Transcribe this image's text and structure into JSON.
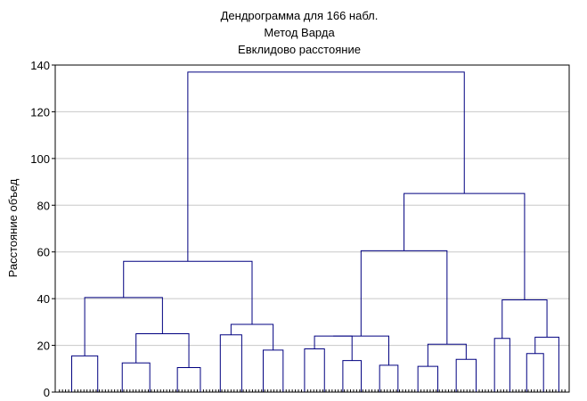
{
  "chart_data": {
    "type": "dendrogram",
    "title": [
      "Дендрограмма для 166 набл.",
      "Метод Варда",
      "Евклидово расстояние"
    ],
    "xlabel": "",
    "ylabel": "Расстояние объед",
    "ylim": [
      0,
      140
    ],
    "yticks": [
      0,
      20,
      40,
      60,
      80,
      100,
      120,
      140
    ],
    "grid": true,
    "colors": {
      "line": "#000080",
      "grid": "#c8c8c8",
      "axis": "#000000"
    },
    "observations": 166,
    "leaf_groups": [
      {
        "start": 0,
        "end": 9
      },
      {
        "start": 9,
        "end": 17
      },
      {
        "start": 17,
        "end": 25
      },
      {
        "start": 25,
        "end": 35
      },
      {
        "start": 35,
        "end": 43
      },
      {
        "start": 43,
        "end": 50
      },
      {
        "start": 50,
        "end": 56
      },
      {
        "start": 56,
        "end": 64
      },
      {
        "start": 64,
        "end": 70
      },
      {
        "start": 70,
        "end": 77
      },
      {
        "start": 77,
        "end": 84
      },
      {
        "start": 84,
        "end": 90
      },
      {
        "start": 90,
        "end": 96
      },
      {
        "start": 96,
        "end": 102
      },
      {
        "start": 102,
        "end": 108
      },
      {
        "start": 108,
        "end": 114
      },
      {
        "start": 114,
        "end": 121
      },
      {
        "start": 121,
        "end": 127
      },
      {
        "start": 127,
        "end": 133
      },
      {
        "start": 133,
        "end": 140
      },
      {
        "start": 140,
        "end": 145
      },
      {
        "start": 145,
        "end": 150
      },
      {
        "start": 150,
        "end": 156
      },
      {
        "start": 156,
        "end": 161
      },
      {
        "start": 161,
        "end": 166
      }
    ],
    "merges": [
      {
        "id": "c1",
        "left": "g0",
        "right": "g1",
        "height": 15.5
      },
      {
        "id": "c2",
        "left": "g2",
        "right": "g3",
        "height": 12.5
      },
      {
        "id": "c3",
        "left": "g4",
        "right": "g5",
        "height": 10.5
      },
      {
        "id": "c4",
        "left": "c2",
        "right": "c3",
        "height": 25
      },
      {
        "id": "c5",
        "left": "c1",
        "right": "c4",
        "height": 40.5
      },
      {
        "id": "c6",
        "left": "g6",
        "right": "g7",
        "height": 24.5
      },
      {
        "id": "c7",
        "left": "g8",
        "right": "g9",
        "height": 18
      },
      {
        "id": "c8",
        "left": "c6",
        "right": "c7",
        "height": 29
      },
      {
        "id": "c9",
        "left": "c5",
        "right": "c8",
        "height": 56
      },
      {
        "id": "c10",
        "left": "g10",
        "right": "g11",
        "height": 18.5
      },
      {
        "id": "c11",
        "left": "g12",
        "right": "g13",
        "height": 13.5
      },
      {
        "id": "c12",
        "left": "g14",
        "right": "g15",
        "height": 11.5
      },
      {
        "id": "c13",
        "left": "c10",
        "right": "c11",
        "height": 24
      },
      {
        "id": "c14",
        "left": "c12",
        "right": "c13",
        "height": 24
      },
      {
        "id": "c15",
        "left": "g16",
        "right": "g17",
        "height": 11
      },
      {
        "id": "c16",
        "left": "g18",
        "right": "g19",
        "height": 14
      },
      {
        "id": "c17",
        "left": "c15",
        "right": "c16",
        "height": 20.5
      },
      {
        "id": "c18",
        "left": "c14",
        "right": "c17",
        "height": 60.5
      },
      {
        "id": "c19",
        "left": "g20",
        "right": "g21",
        "height": 23
      },
      {
        "id": "c20",
        "left": "g22",
        "right": "g23",
        "height": 16.5
      },
      {
        "id": "c21",
        "left": "g24",
        "right": "c20",
        "height": 23.5
      },
      {
        "id": "c22",
        "left": "c19",
        "right": "c21",
        "height": 39.5
      },
      {
        "id": "c23",
        "left": "c18",
        "right": "c22",
        "height": 85
      },
      {
        "id": "c24",
        "left": "c9",
        "right": "c23",
        "height": 137
      }
    ]
  }
}
